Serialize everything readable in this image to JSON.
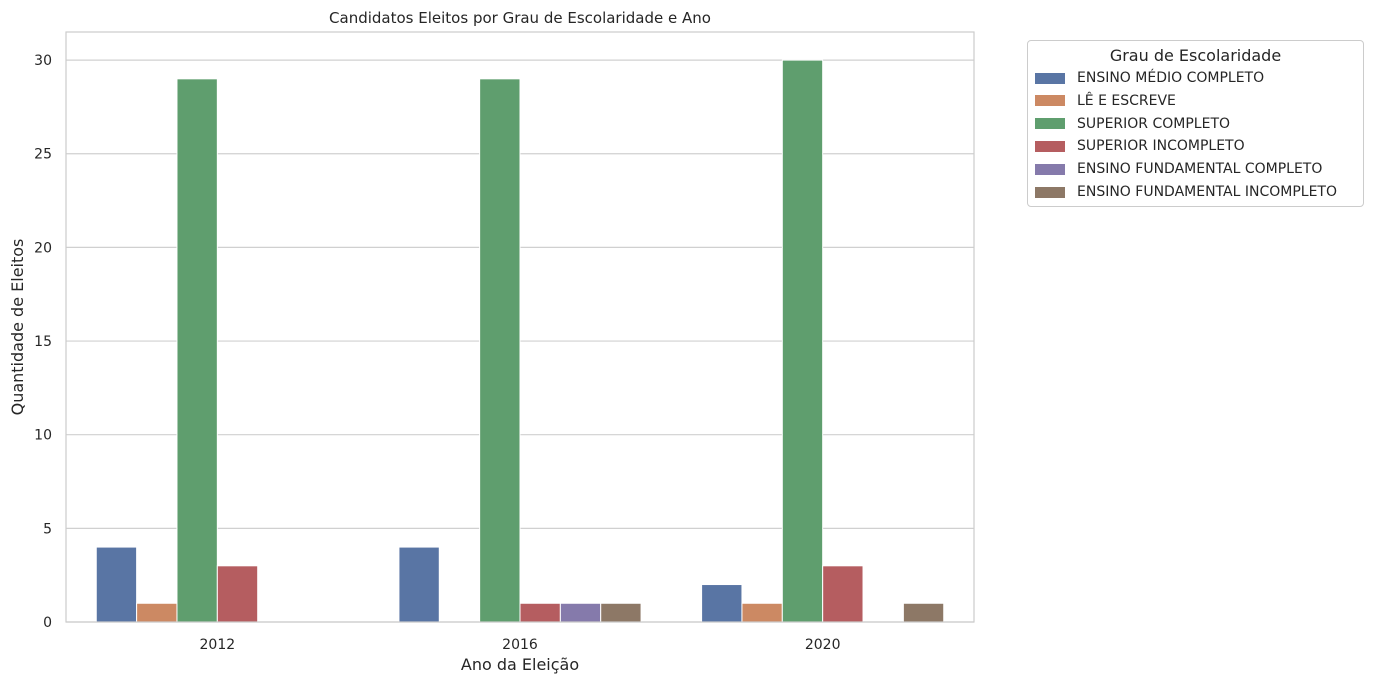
{
  "chart_data": {
    "type": "bar",
    "title": "Candidatos Eleitos por Grau de Escolaridade e Ano",
    "xlabel": "Ano da Eleição",
    "ylabel": "Quantidade de Eleitos",
    "categories": [
      "2012",
      "2016",
      "2020"
    ],
    "ylim": [
      0,
      31.5
    ],
    "yticks": [
      0,
      5,
      10,
      15,
      20,
      25,
      30
    ],
    "grid": true,
    "legend": {
      "title": "Grau de Escolaridade",
      "placement": "outside-top-right"
    },
    "series": [
      {
        "name": "ENSINO MÉDIO COMPLETO",
        "color": "#5975a4",
        "values": [
          4,
          4,
          2
        ]
      },
      {
        "name": "LÊ E ESCREVE",
        "color": "#cc8963",
        "values": [
          1,
          null,
          1
        ]
      },
      {
        "name": "SUPERIOR COMPLETO",
        "color": "#5f9e6e",
        "values": [
          29,
          29,
          30
        ]
      },
      {
        "name": "SUPERIOR INCOMPLETO",
        "color": "#b55d60",
        "values": [
          3,
          1,
          3
        ]
      },
      {
        "name": "ENSINO FUNDAMENTAL COMPLETO",
        "color": "#857aab",
        "values": [
          null,
          1,
          null
        ]
      },
      {
        "name": "ENSINO FUNDAMENTAL INCOMPLETO",
        "color": "#8d7866",
        "values": [
          null,
          1,
          1
        ]
      }
    ]
  }
}
